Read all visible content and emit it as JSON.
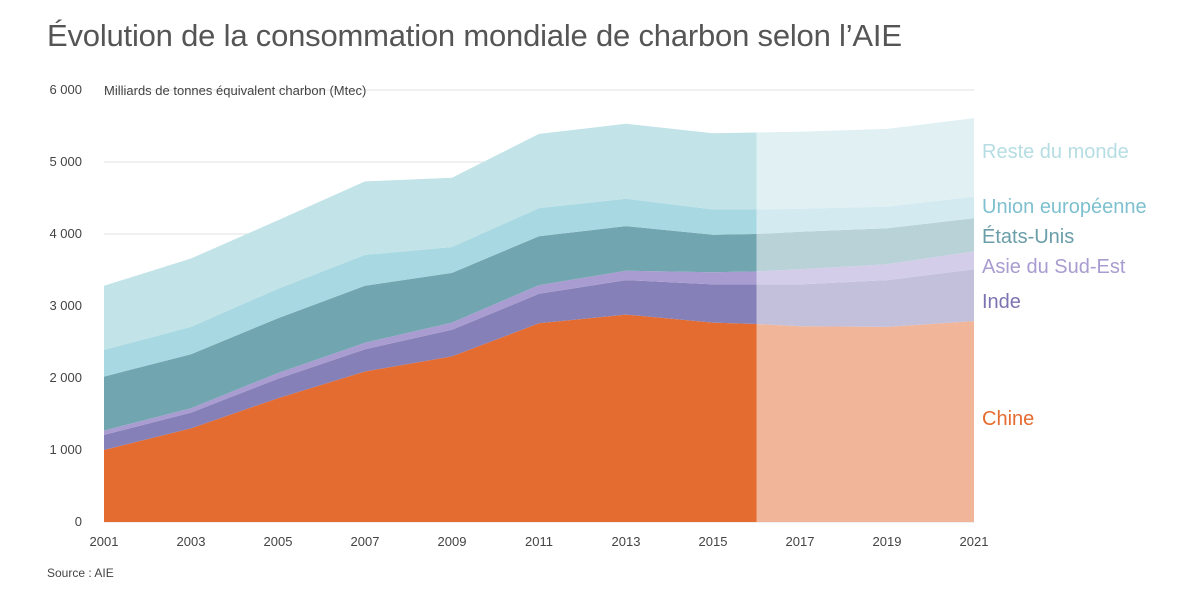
{
  "title": "Évolution de la consommation mondiale de charbon selon l’AIE",
  "source": "Source : AIE",
  "chart_data": {
    "type": "area",
    "stacked": true,
    "title": "Évolution de la consommation mondiale de charbon selon l’AIE",
    "ylabel": "Milliards de tonnes équivalent charbon (Mtec)",
    "xlabel": "",
    "ylim": [
      0,
      6000
    ],
    "yticks": [
      0,
      1000,
      2000,
      3000,
      4000,
      5000,
      6000
    ],
    "ytick_labels": [
      "0",
      "1 000",
      "2 000",
      "3 000",
      "4 000",
      "5 000",
      "6 000"
    ],
    "xticks": [
      2001,
      2003,
      2005,
      2007,
      2009,
      2011,
      2013,
      2015,
      2017,
      2019,
      2021
    ],
    "xtick_labels": [
      "2001",
      "2003",
      "2005",
      "2007",
      "2009",
      "2011",
      "2013",
      "2015",
      "2017",
      "2019",
      "2021"
    ],
    "grid": true,
    "legend_position": "right",
    "projection_start_year": 2016,
    "x": [
      2001,
      2003,
      2005,
      2007,
      2009,
      2011,
      2013,
      2015,
      2016,
      2017,
      2019,
      2021
    ],
    "series": [
      {
        "name": "Chine",
        "color": "#e46c30",
        "projected_color": "#f1b699",
        "values": [
          1000,
          1300,
          1720,
          2090,
          2300,
          2760,
          2880,
          2770,
          2750,
          2720,
          2710,
          2790
        ]
      },
      {
        "name": "Inde",
        "color": "#8680b8",
        "projected_color": "#c3c0dc",
        "values": [
          210,
          220,
          270,
          310,
          370,
          410,
          480,
          530,
          550,
          580,
          650,
          720
        ]
      },
      {
        "name": "Asie du Sud-Est",
        "color": "#a99cd0",
        "projected_color": "#d3cde9",
        "values": [
          60,
          60,
          80,
          90,
          100,
          120,
          130,
          170,
          180,
          210,
          220,
          250
        ]
      },
      {
        "name": "États-Unis",
        "color": "#71a5b0",
        "projected_color": "#b8d2d8",
        "values": [
          750,
          750,
          760,
          790,
          690,
          680,
          620,
          520,
          520,
          520,
          500,
          460
        ]
      },
      {
        "name": "Union européenne",
        "color": "#a8d8e2",
        "projected_color": "#d3ebf0",
        "values": [
          370,
          380,
          410,
          430,
          360,
          390,
          380,
          350,
          340,
          320,
          300,
          300
        ]
      },
      {
        "name": "Reste du monde",
        "color": "#c2e3e8",
        "projected_color": "#e0f0f3",
        "values": [
          890,
          950,
          950,
          1020,
          960,
          1030,
          1040,
          1060,
          1070,
          1070,
          1080,
          1090
        ]
      }
    ]
  }
}
